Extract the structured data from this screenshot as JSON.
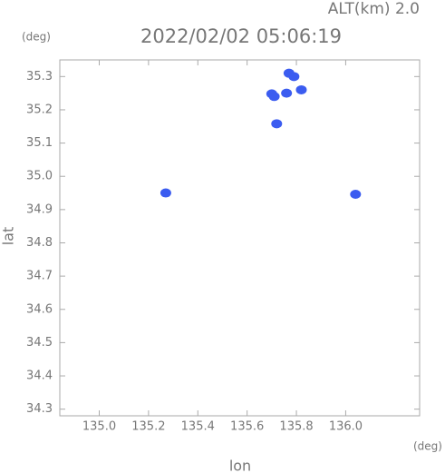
{
  "chart_data": {
    "type": "scatter",
    "title": "2022/02/02 05:06:19",
    "subtitle": "ALT(km) 2.0",
    "x_label": "lon",
    "y_label": "lat",
    "x_unit": "(deg)",
    "y_unit": "(deg)",
    "x": [
      135.77,
      135.79,
      135.7,
      135.71,
      135.76,
      135.82,
      135.72,
      136.04,
      135.27
    ],
    "values": [
      35.31,
      35.3,
      35.248,
      35.24,
      35.25,
      35.26,
      35.158,
      34.946,
      34.95
    ],
    "color": "#3b5cf0",
    "xlim": [
      134.84,
      136.3
    ],
    "ylim": [
      34.28,
      35.35
    ],
    "xticks": [
      {
        "value": 135,
        "label": "135.0"
      },
      135.2,
      135.4,
      135.6,
      135.8,
      {
        "value": 136,
        "label": "136.0"
      }
    ],
    "yticks": [
      34.3,
      34.4,
      34.5,
      34.6,
      34.7,
      34.8,
      34.9,
      {
        "value": 35,
        "label": "35.0"
      },
      35.1,
      35.2,
      35.3
    ],
    "grid": false
  }
}
